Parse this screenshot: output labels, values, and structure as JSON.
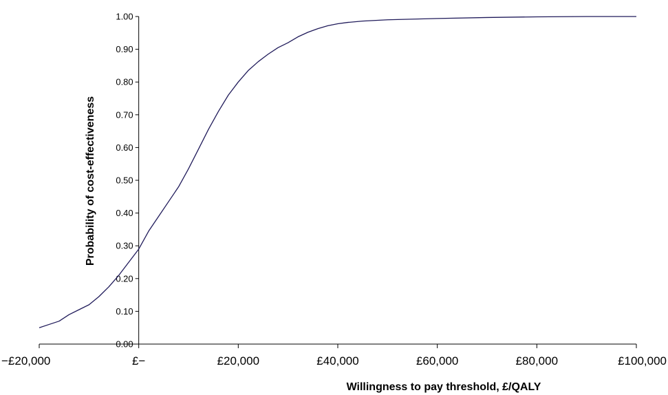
{
  "chart_data": {
    "type": "line",
    "title": "",
    "xlabel": "Willingness to pay threshold, £/QALY",
    "ylabel": "Probability of cost-effectiveness",
    "xlim": [
      -20000,
      100000
    ],
    "ylim": [
      0,
      1
    ],
    "grid": false,
    "legend": "none",
    "colors": {
      "line": "#1f1a5a",
      "axis": "#000000"
    },
    "x_ticks": [
      {
        "value": -20000,
        "label": "−£20,000"
      },
      {
        "value": 0,
        "label": "£−"
      },
      {
        "value": 20000,
        "label": "£20,000"
      },
      {
        "value": 40000,
        "label": "£40,000"
      },
      {
        "value": 60000,
        "label": "£60,000"
      },
      {
        "value": 80000,
        "label": "£80,000"
      },
      {
        "value": 100000,
        "label": "£100,000"
      }
    ],
    "y_ticks": [
      {
        "value": 0.0,
        "label": "0.00"
      },
      {
        "value": 0.1,
        "label": "0.10"
      },
      {
        "value": 0.2,
        "label": "0.20"
      },
      {
        "value": 0.3,
        "label": "0.30"
      },
      {
        "value": 0.4,
        "label": "0.40"
      },
      {
        "value": 0.5,
        "label": "0.50"
      },
      {
        "value": 0.6,
        "label": "0.60"
      },
      {
        "value": 0.7,
        "label": "0.70"
      },
      {
        "value": 0.8,
        "label": "0.80"
      },
      {
        "value": 0.9,
        "label": "0.90"
      },
      {
        "value": 1.0,
        "label": "1.00"
      }
    ],
    "series": [
      {
        "x": [
          -20000,
          -18000,
          -16000,
          -14000,
          -12000,
          -10000,
          -8000,
          -6000,
          -4000,
          -2000,
          0,
          2000,
          4000,
          6000,
          8000,
          10000,
          12000,
          14000,
          16000,
          18000,
          20000,
          22000,
          24000,
          26000,
          28000,
          30000,
          32000,
          34000,
          36000,
          38000,
          40000,
          42000,
          45000,
          50000,
          60000,
          70000,
          80000,
          90000,
          100000
        ],
        "y": [
          0.05,
          0.06,
          0.07,
          0.09,
          0.105,
          0.12,
          0.145,
          0.175,
          0.21,
          0.25,
          0.29,
          0.345,
          0.39,
          0.435,
          0.48,
          0.535,
          0.595,
          0.655,
          0.71,
          0.76,
          0.8,
          0.835,
          0.862,
          0.885,
          0.905,
          0.92,
          0.938,
          0.952,
          0.963,
          0.972,
          0.978,
          0.982,
          0.986,
          0.99,
          0.994,
          0.997,
          0.999,
          1.0,
          1.0
        ]
      }
    ]
  }
}
